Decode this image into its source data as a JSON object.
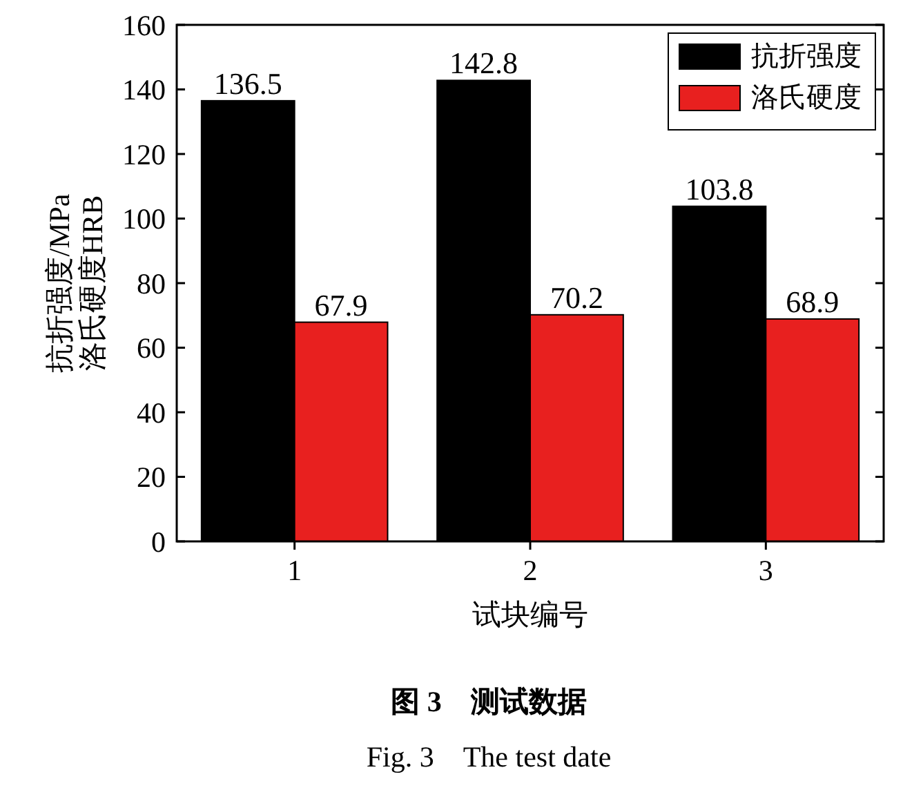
{
  "chart_data": {
    "type": "bar",
    "title": "图 3　测试数据",
    "subtitle": "Fig. 3　The test date",
    "xlabel": "试块编号",
    "ylabel": "抗折强度/MPa\n洛氏硬度HRB",
    "categories": [
      "1",
      "2",
      "3"
    ],
    "series": [
      {
        "name": "抗折强度",
        "color": "#000000",
        "values": [
          136.5,
          142.8,
          103.8
        ]
      },
      {
        "name": "洛氏硬度",
        "color": "#e8201f",
        "values": [
          67.9,
          70.2,
          68.9
        ]
      }
    ],
    "ylim": [
      0,
      160
    ],
    "yticks": [
      0,
      20,
      40,
      60,
      80,
      100,
      120,
      140,
      160
    ],
    "data_labels": true,
    "legend": "top right",
    "grid": false
  }
}
